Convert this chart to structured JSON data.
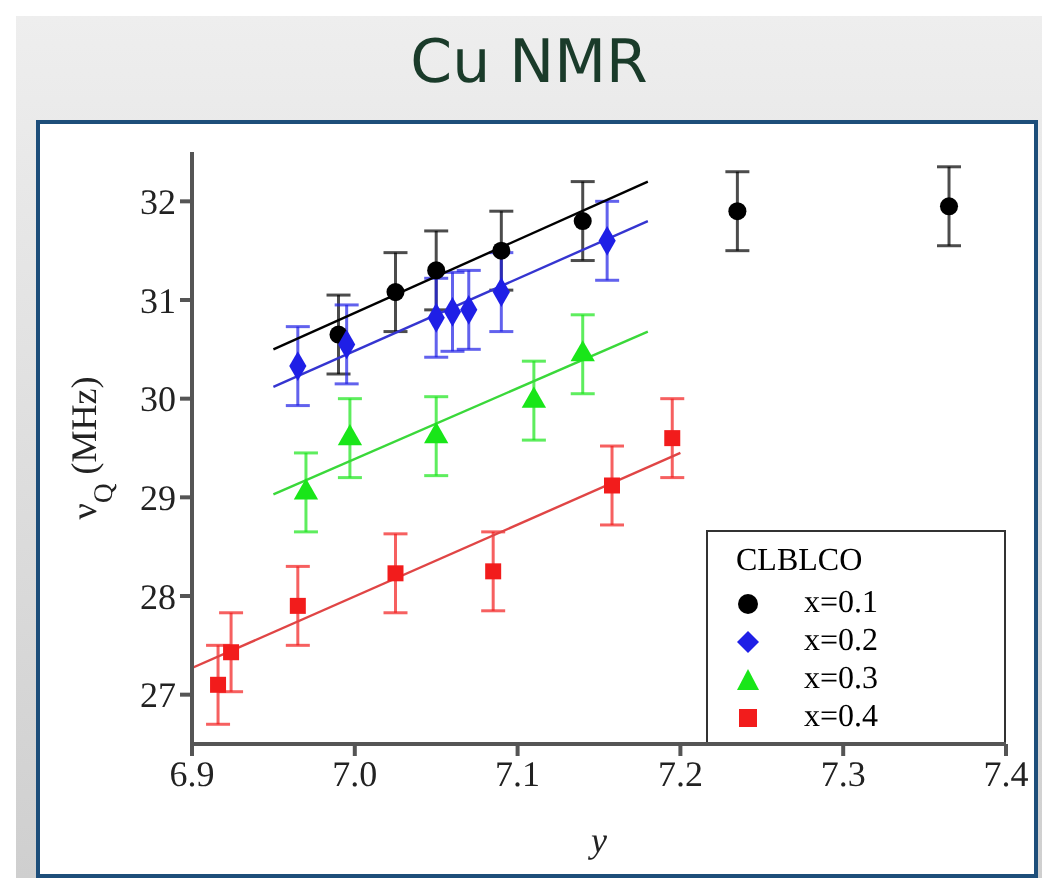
{
  "chart_data": {
    "type": "scatter",
    "title": "Cu NMR",
    "xlabel": "y",
    "ylabel": "ν$_{Q}$ (MHz)",
    "legend_title": "CLBLCO",
    "legend": "bottom right",
    "xlim": [
      6.9,
      7.4
    ],
    "ylim": [
      26.5,
      32.5
    ],
    "xticks": [
      6.9,
      {
        "value": 7,
        "label": "7.0"
      },
      7.1,
      7.2,
      7.3,
      7.4
    ],
    "yticks": [
      27,
      28,
      29,
      30,
      31,
      32
    ],
    "grid": false,
    "series": [
      {
        "name": "x=0.1",
        "color": "#000000",
        "marker": "circle",
        "x": [
          6.99,
          7.025,
          7.05,
          7.09,
          7.14,
          7.235,
          7.365
        ],
        "values": [
          30.65,
          31.08,
          31.3,
          31.5,
          31.8,
          31.9,
          31.95
        ],
        "errors": [
          0.4,
          0.4,
          0.4,
          0.4,
          0.4,
          0.4,
          0.4
        ]
      },
      {
        "name": "x=0.2",
        "color": "#1f1fe6",
        "marker": "diamond",
        "x": [
          6.965,
          6.995,
          7.05,
          7.06,
          7.07,
          7.09,
          7.155
        ],
        "values": [
          30.33,
          30.55,
          30.82,
          30.88,
          30.9,
          31.08,
          31.6
        ],
        "errors": [
          0.4,
          0.4,
          0.4,
          0.4,
          0.4,
          0.4,
          0.4
        ]
      },
      {
        "name": "x=0.3",
        "color": "#19e619",
        "marker": "triangle",
        "x": [
          6.97,
          6.997,
          7.05,
          7.11,
          7.14
        ],
        "values": [
          29.05,
          29.6,
          29.62,
          29.98,
          30.45
        ],
        "errors": [
          0.4,
          0.4,
          0.4,
          0.4,
          0.4
        ]
      },
      {
        "name": "x=0.4",
        "color": "#f21c1c",
        "marker": "square",
        "x": [
          6.916,
          6.924,
          6.965,
          7.025,
          7.085,
          7.158,
          7.195
        ],
        "values": [
          27.1,
          27.43,
          27.9,
          28.23,
          28.25,
          29.12,
          29.6
        ],
        "errors": [
          0.4,
          0.4,
          0.4,
          0.4,
          0.4,
          0.4,
          0.4
        ]
      },
      {
        "type": "line",
        "color": "#000000",
        "x": [
          6.95,
          7.18
        ],
        "values": [
          30.5,
          32.2
        ]
      },
      {
        "type": "line",
        "color": "#3535d0",
        "x": [
          6.95,
          7.18
        ],
        "values": [
          30.12,
          31.8
        ]
      },
      {
        "type": "line",
        "color": "#3ad83a",
        "x": [
          6.95,
          7.18
        ],
        "values": [
          29.03,
          30.68
        ]
      },
      {
        "type": "line",
        "color": "#e04545",
        "x": [
          6.9,
          7.2
        ],
        "values": [
          27.27,
          29.45
        ]
      }
    ]
  }
}
